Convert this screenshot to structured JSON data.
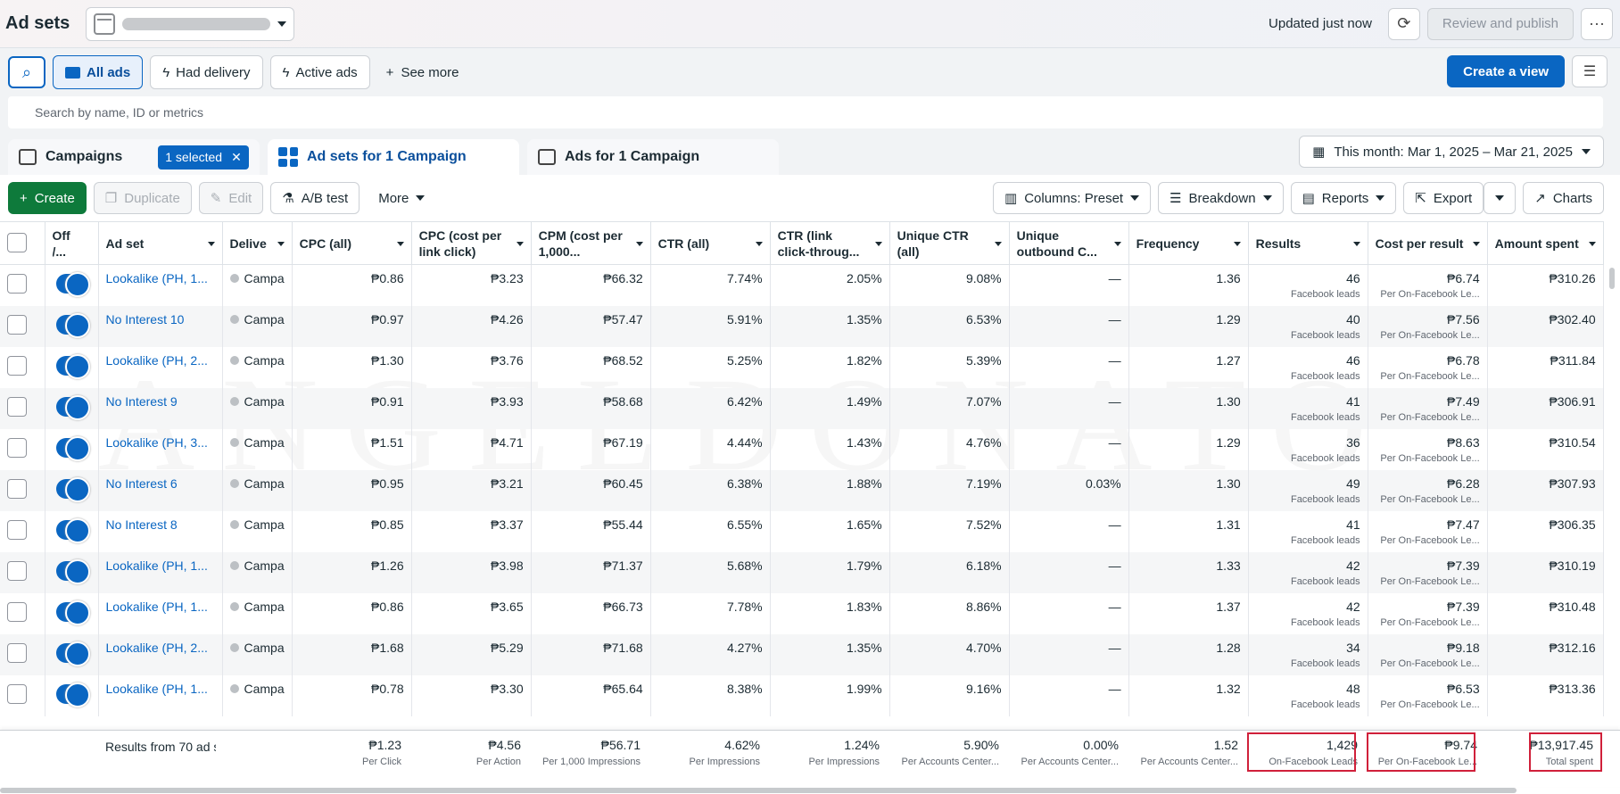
{
  "header": {
    "title": "Ad sets",
    "updated": "Updated just now",
    "review": "Review and publish"
  },
  "filters": {
    "all_ads": "All ads",
    "had_delivery": "Had delivery",
    "active_ads": "Active ads",
    "see_more": "See more",
    "create_view": "Create a view"
  },
  "search": {
    "placeholder": "Search by name, ID or metrics"
  },
  "tabs": {
    "campaigns": "Campaigns",
    "selected": "1 selected",
    "adsets": "Ad sets for 1 Campaign",
    "ads": "Ads for 1 Campaign",
    "date": "This month: Mar 1, 2025 – Mar 21, 2025"
  },
  "toolbar": {
    "create": "Create",
    "duplicate": "Duplicate",
    "edit": "Edit",
    "ab": "A/B test",
    "more": "More",
    "columns": "Columns: Preset",
    "breakdown": "Breakdown",
    "reports": "Reports",
    "export": "Export",
    "charts": "Charts"
  },
  "columns": [
    "Off /...",
    "Ad set",
    "Delive",
    "CPC (all)",
    "CPC (cost per link click)",
    "CPM (cost per 1,000...",
    "CTR (all)",
    "CTR (link click-throug...",
    "Unique CTR (all)",
    "Unique outbound C...",
    "Frequency",
    "Results",
    "Cost per result",
    "Amount spent"
  ],
  "rows": [
    {
      "name": "Lookalike (PH, 1...",
      "status": "Campa",
      "cpc": "₱0.86",
      "cpclink": "₱3.23",
      "cpm": "₱66.32",
      "ctr": "7.74%",
      "ctrlink": "2.05%",
      "uctr": "9.08%",
      "uout": "—",
      "freq": "1.36",
      "results": "46",
      "rsub": "Facebook leads",
      "cpr": "₱6.74",
      "cprsub": "Per On-Facebook Le...",
      "spent": "₱310.26"
    },
    {
      "name": "No Interest 10",
      "status": "Campa",
      "cpc": "₱0.97",
      "cpclink": "₱4.26",
      "cpm": "₱57.47",
      "ctr": "5.91%",
      "ctrlink": "1.35%",
      "uctr": "6.53%",
      "uout": "—",
      "freq": "1.29",
      "results": "40",
      "rsub": "Facebook leads",
      "cpr": "₱7.56",
      "cprsub": "Per On-Facebook Le...",
      "spent": "₱302.40"
    },
    {
      "name": "Lookalike (PH, 2...",
      "status": "Campa",
      "cpc": "₱1.30",
      "cpclink": "₱3.76",
      "cpm": "₱68.52",
      "ctr": "5.25%",
      "ctrlink": "1.82%",
      "uctr": "5.39%",
      "uout": "—",
      "freq": "1.27",
      "results": "46",
      "rsub": "Facebook leads",
      "cpr": "₱6.78",
      "cprsub": "Per On-Facebook Le...",
      "spent": "₱311.84"
    },
    {
      "name": "No Interest 9",
      "status": "Campa",
      "cpc": "₱0.91",
      "cpclink": "₱3.93",
      "cpm": "₱58.68",
      "ctr": "6.42%",
      "ctrlink": "1.49%",
      "uctr": "7.07%",
      "uout": "—",
      "freq": "1.30",
      "results": "41",
      "rsub": "Facebook leads",
      "cpr": "₱7.49",
      "cprsub": "Per On-Facebook Le...",
      "spent": "₱306.91"
    },
    {
      "name": "Lookalike (PH, 3...",
      "status": "Campa",
      "cpc": "₱1.51",
      "cpclink": "₱4.71",
      "cpm": "₱67.19",
      "ctr": "4.44%",
      "ctrlink": "1.43%",
      "uctr": "4.76%",
      "uout": "—",
      "freq": "1.29",
      "results": "36",
      "rsub": "Facebook leads",
      "cpr": "₱8.63",
      "cprsub": "Per On-Facebook Le...",
      "spent": "₱310.54"
    },
    {
      "name": "No Interest 6",
      "status": "Campa",
      "cpc": "₱0.95",
      "cpclink": "₱3.21",
      "cpm": "₱60.45",
      "ctr": "6.38%",
      "ctrlink": "1.88%",
      "uctr": "7.19%",
      "uout": "0.03%",
      "freq": "1.30",
      "results": "49",
      "rsub": "Facebook leads",
      "cpr": "₱6.28",
      "cprsub": "Per On-Facebook Le...",
      "spent": "₱307.93"
    },
    {
      "name": "No Interest 8",
      "status": "Campa",
      "cpc": "₱0.85",
      "cpclink": "₱3.37",
      "cpm": "₱55.44",
      "ctr": "6.55%",
      "ctrlink": "1.65%",
      "uctr": "7.52%",
      "uout": "—",
      "freq": "1.31",
      "results": "41",
      "rsub": "Facebook leads",
      "cpr": "₱7.47",
      "cprsub": "Per On-Facebook Le...",
      "spent": "₱306.35"
    },
    {
      "name": "Lookalike (PH, 1...",
      "status": "Campa",
      "cpc": "₱1.26",
      "cpclink": "₱3.98",
      "cpm": "₱71.37",
      "ctr": "5.68%",
      "ctrlink": "1.79%",
      "uctr": "6.18%",
      "uout": "—",
      "freq": "1.33",
      "results": "42",
      "rsub": "Facebook leads",
      "cpr": "₱7.39",
      "cprsub": "Per On-Facebook Le...",
      "spent": "₱310.19"
    },
    {
      "name": "Lookalike (PH, 1...",
      "status": "Campa",
      "cpc": "₱0.86",
      "cpclink": "₱3.65",
      "cpm": "₱66.73",
      "ctr": "7.78%",
      "ctrlink": "1.83%",
      "uctr": "8.86%",
      "uout": "—",
      "freq": "1.37",
      "results": "42",
      "rsub": "Facebook leads",
      "cpr": "₱7.39",
      "cprsub": "Per On-Facebook Le...",
      "spent": "₱310.48"
    },
    {
      "name": "Lookalike (PH, 2...",
      "status": "Campa",
      "cpc": "₱1.68",
      "cpclink": "₱5.29",
      "cpm": "₱71.68",
      "ctr": "4.27%",
      "ctrlink": "1.35%",
      "uctr": "4.70%",
      "uout": "—",
      "freq": "1.28",
      "results": "34",
      "rsub": "Facebook leads",
      "cpr": "₱9.18",
      "cprsub": "Per On-Facebook Le...",
      "spent": "₱312.16"
    },
    {
      "name": "Lookalike (PH, 1...",
      "status": "Campa",
      "cpc": "₱0.78",
      "cpclink": "₱3.30",
      "cpm": "₱65.64",
      "ctr": "8.38%",
      "ctrlink": "1.99%",
      "uctr": "9.16%",
      "uout": "—",
      "freq": "1.32",
      "results": "48",
      "rsub": "Facebook leads",
      "cpr": "₱6.53",
      "cprsub": "Per On-Facebook Le...",
      "spent": "₱313.36"
    }
  ],
  "totals": {
    "label": "Results from 70 ad s",
    "cpc": "₱1.23",
    "cpc_sub": "Per Click",
    "cpclink": "₱4.56",
    "cpclink_sub": "Per Action",
    "cpm": "₱56.71",
    "cpm_sub": "Per 1,000 Impressions",
    "ctr": "4.62%",
    "ctr_sub": "Per Impressions",
    "ctrlink": "1.24%",
    "ctrlink_sub": "Per Impressions",
    "uctr": "5.90%",
    "uctr_sub": "Per Accounts Center...",
    "uout": "0.00%",
    "uout_sub": "Per Accounts Center...",
    "freq": "1.52",
    "freq_sub": "Per Accounts Center...",
    "results": "1,429",
    "results_sub": "On-Facebook Leads",
    "cpr": "₱9.74",
    "cpr_sub": "Per On-Facebook Le...",
    "spent": "₱13,917.45",
    "spent_sub": "Total spent"
  },
  "watermark": "ANGELDONATO",
  "colors": {
    "accent": "#0a66c2",
    "create": "#0e7a3b",
    "highlight": "#d0203a"
  }
}
